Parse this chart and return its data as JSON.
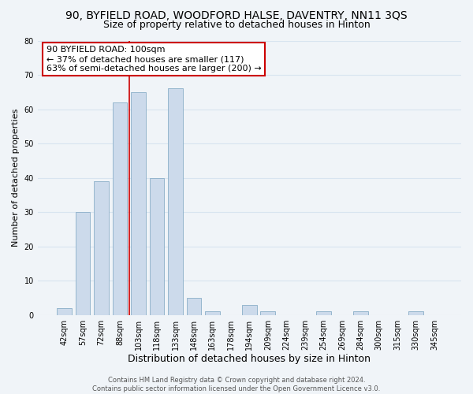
{
  "title": "90, BYFIELD ROAD, WOODFORD HALSE, DAVENTRY, NN11 3QS",
  "subtitle": "Size of property relative to detached houses in Hinton",
  "xlabel": "Distribution of detached houses by size in Hinton",
  "ylabel": "Number of detached properties",
  "bar_labels": [
    "42sqm",
    "57sqm",
    "72sqm",
    "88sqm",
    "103sqm",
    "118sqm",
    "133sqm",
    "148sqm",
    "163sqm",
    "178sqm",
    "194sqm",
    "209sqm",
    "224sqm",
    "239sqm",
    "254sqm",
    "269sqm",
    "284sqm",
    "300sqm",
    "315sqm",
    "330sqm",
    "345sqm"
  ],
  "bar_values": [
    2,
    30,
    39,
    62,
    65,
    40,
    66,
    5,
    1,
    0,
    3,
    1,
    0,
    0,
    1,
    0,
    1,
    0,
    0,
    1,
    0
  ],
  "bar_color": "#ccdaeb",
  "bar_edge_color": "#8aaec8",
  "highlight_line_color": "#cc0000",
  "annotation_box_text": "90 BYFIELD ROAD: 100sqm\n← 37% of detached houses are smaller (117)\n63% of semi-detached houses are larger (200) →",
  "annotation_box_facecolor": "white",
  "annotation_box_edgecolor": "#cc0000",
  "ylim": [
    0,
    80
  ],
  "yticks": [
    0,
    10,
    20,
    30,
    40,
    50,
    60,
    70,
    80
  ],
  "grid_color": "#d8e4f0",
  "background_color": "#f0f4f8",
  "footer_text": "Contains HM Land Registry data © Crown copyright and database right 2024.\nContains public sector information licensed under the Open Government Licence v3.0.",
  "title_fontsize": 10,
  "subtitle_fontsize": 9,
  "xlabel_fontsize": 9,
  "ylabel_fontsize": 8,
  "annotation_fontsize": 8,
  "tick_fontsize": 7,
  "footer_fontsize": 6
}
